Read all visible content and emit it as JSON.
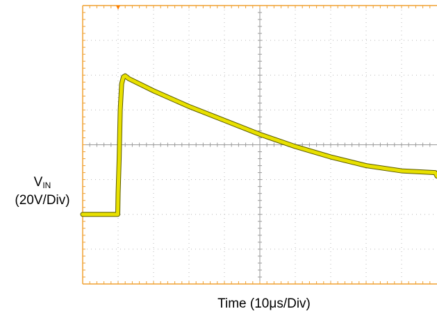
{
  "chart_data": {
    "type": "line",
    "title": "",
    "xlabel": "Time (10μs/Div)",
    "ylabel": {
      "main": "V",
      "subscript": "IN",
      "scale": "(20V/Div)"
    },
    "x_unit": "μs",
    "y_unit": "V",
    "xlim": [
      0,
      100
    ],
    "ylim": [
      -40,
      40
    ],
    "x_divisions": 10,
    "y_divisions": 8,
    "grid": true,
    "trigger_marker_x": 10,
    "colors": {
      "trace": "#e8e000",
      "trace_edge": "#5a5a00",
      "frame": "#f0a030",
      "grid": "#b8b8b8",
      "trigger": "#ff7f00"
    },
    "series": [
      {
        "x": [
          0,
          9.9,
          10.0,
          10.3,
          10.6,
          11.0,
          11.5,
          12.0,
          13.0,
          15.0,
          20.0,
          30.0,
          40.0,
          50.0,
          60.0,
          70.0,
          80.0,
          90.0,
          99.5,
          100.0
        ],
        "y": [
          -20.0,
          -20.0,
          -14.0,
          -4.0,
          10.0,
          17.5,
          19.5,
          19.8,
          19.0,
          18.0,
          15.5,
          11.0,
          7.0,
          3.0,
          -0.5,
          -3.5,
          -6.0,
          -7.5,
          -8.0,
          -9.0
        ]
      }
    ]
  }
}
